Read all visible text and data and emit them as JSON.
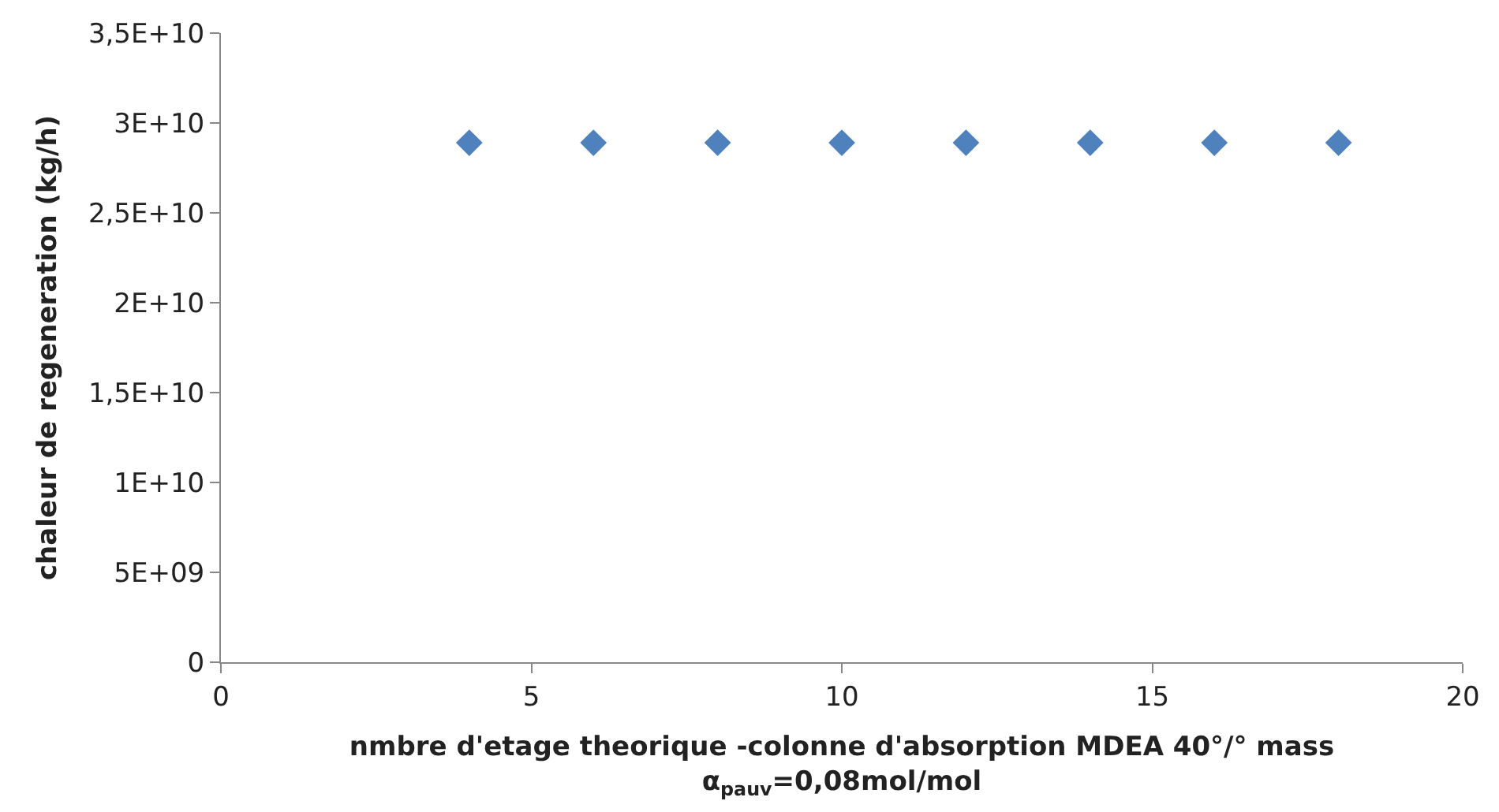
{
  "chart_data": {
    "type": "scatter",
    "xlabel": "nmbre d'etage theorique -colonne d'absorption MDEA 40°/° mass\nα$_{pauv}$=0,08mol/mol",
    "ylabel": "chaleur de regeneration (kg/h)",
    "x": [
      4,
      6,
      8,
      10,
      12,
      14,
      16,
      18
    ],
    "series": [
      {
        "color": "#4f81bd",
        "values": [
          28900000000.0,
          28900000000.0,
          28900000000.0,
          28900000000.0,
          28900000000.0,
          28900000000.0,
          28900000000.0,
          28900000000.0
        ]
      }
    ],
    "marker": "diamond",
    "xlim": [
      0,
      20
    ],
    "xticks": [
      0,
      5,
      10,
      15,
      20
    ],
    "ylim": [
      0,
      35000000000.0
    ],
    "yticks": [
      0,
      {
        "value": 5000000000.0,
        "label": "5E+09"
      },
      {
        "value": 10000000000.0,
        "label": "1E+10"
      },
      {
        "value": 15000000000.0,
        "label": "1,5E+10"
      },
      {
        "value": 20000000000.0,
        "label": "2E+10"
      },
      {
        "value": 25000000000.0,
        "label": "2,5E+10"
      },
      {
        "value": 30000000000.0,
        "label": "3E+10"
      },
      {
        "value": 35000000000.0,
        "label": "3,5E+10"
      }
    ]
  }
}
